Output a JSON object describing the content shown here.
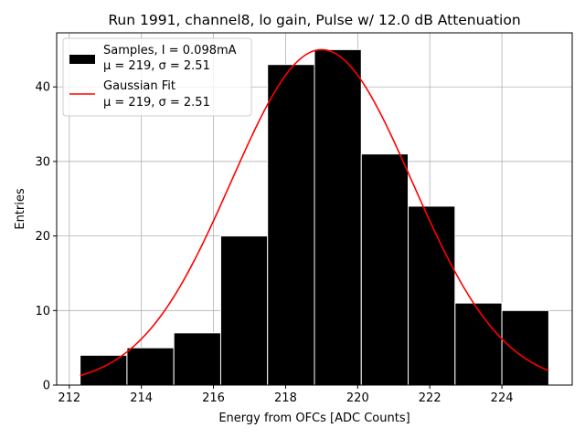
{
  "chart_data": {
    "type": "bar",
    "title": "Run 1991, channel8, lo gain, Pulse w/ 12.0 dB Attenuation",
    "xlabel": "Energy from OFCs [ADC Counts]",
    "ylabel": "Entries",
    "xlim": [
      211.65,
      225.95
    ],
    "ylim": [
      0,
      47.25
    ],
    "xticks": [
      212,
      214,
      216,
      218,
      220,
      222,
      224
    ],
    "yticks": [
      0,
      10,
      20,
      30,
      40
    ],
    "grid": true,
    "bin_edges": [
      212.3,
      213.6,
      214.9,
      216.2,
      217.5,
      218.8,
      220.1,
      221.4,
      222.7,
      224.0,
      225.3
    ],
    "values": [
      4,
      5,
      7,
      20,
      43,
      45,
      31,
      24,
      11,
      10
    ],
    "bar_color": "#000000",
    "fit": {
      "type": "line",
      "mu": 219.0,
      "sigma": 2.51,
      "amplitude": 45.0,
      "x_range": [
        212.3,
        225.3
      ],
      "color": "#ff0000"
    },
    "legend": {
      "position": "top-left",
      "entries": [
        {
          "line1": "Samples, I = 0.098mA",
          "line2": "μ = 219, σ = 2.51"
        },
        {
          "line1": "Gaussian Fit",
          "line2": "μ = 219, σ = 2.51"
        }
      ]
    }
  }
}
